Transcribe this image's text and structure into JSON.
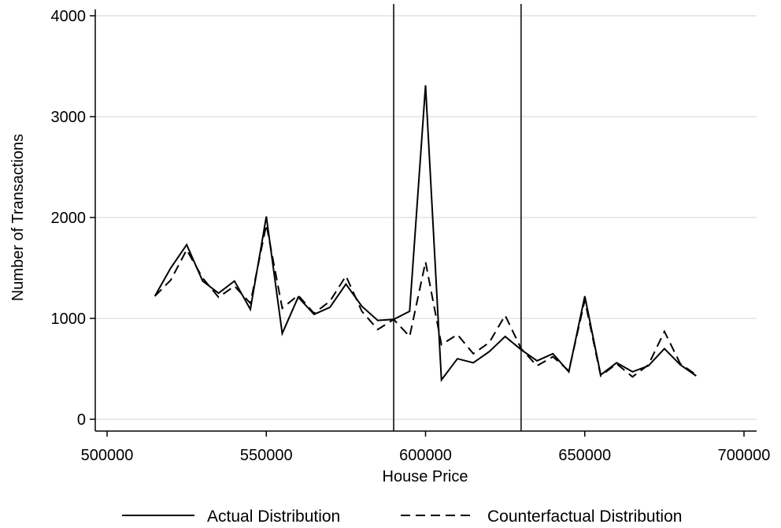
{
  "chart_data": {
    "type": "line",
    "xlabel": "House Price",
    "ylabel": "Number of Transactions",
    "xlim": [
      500000,
      700000
    ],
    "ylim": [
      0,
      4000
    ],
    "xticks": [
      "500000",
      "550000",
      "600000",
      "650000",
      "700000"
    ],
    "yticks": [
      "0",
      "1000",
      "2000",
      "3000",
      "4000"
    ],
    "grid": "horizontal",
    "legend_position": "bottom",
    "vertical_lines": [
      590000,
      630000
    ],
    "series": [
      {
        "name": "Actual Distribution",
        "style": "solid",
        "x": [
          515000,
          520000,
          525000,
          530000,
          535000,
          540000,
          545000,
          550000,
          555000,
          560000,
          565000,
          570000,
          575000,
          580000,
          585000,
          590000,
          595000,
          600000,
          605000,
          610000,
          615000,
          620000,
          625000,
          630000,
          635000,
          640000,
          645000,
          650000,
          655000,
          660000,
          665000,
          670000,
          675000,
          680000,
          685000
        ],
        "values": [
          1220,
          1500,
          1730,
          1370,
          1250,
          1370,
          1090,
          2010,
          850,
          1210,
          1040,
          1110,
          1340,
          1120,
          980,
          990,
          1070,
          3310,
          390,
          600,
          560,
          670,
          820,
          690,
          580,
          650,
          470,
          1220,
          440,
          560,
          470,
          530,
          700,
          540,
          430
        ]
      },
      {
        "name": "Counterfactual Distribution",
        "style": "dashed",
        "x": [
          515000,
          520000,
          525000,
          530000,
          535000,
          540000,
          545000,
          550000,
          555000,
          560000,
          565000,
          570000,
          575000,
          580000,
          585000,
          590000,
          595000,
          600000,
          605000,
          610000,
          615000,
          620000,
          625000,
          630000,
          635000,
          640000,
          645000,
          650000,
          655000,
          660000,
          665000,
          670000,
          675000,
          680000,
          685000
        ],
        "values": [
          1220,
          1380,
          1680,
          1400,
          1210,
          1320,
          1150,
          1930,
          1100,
          1230,
          1050,
          1170,
          1420,
          1070,
          890,
          990,
          820,
          1560,
          740,
          840,
          650,
          760,
          1030,
          700,
          530,
          620,
          480,
          1180,
          430,
          550,
          420,
          540,
          870,
          550,
          440
        ]
      }
    ]
  }
}
